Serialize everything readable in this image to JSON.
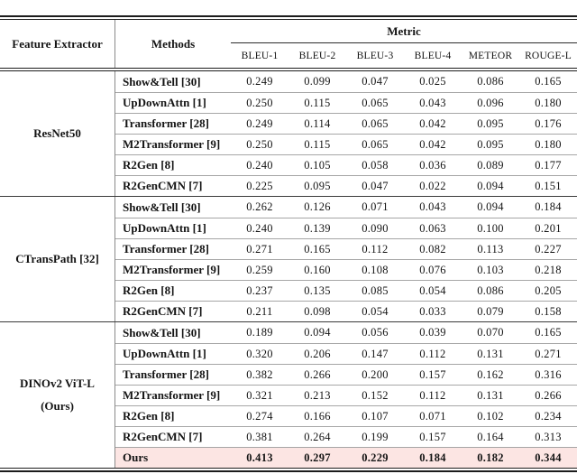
{
  "table": {
    "header": {
      "feature_extractor": "Feature Extractor",
      "methods": "Methods",
      "metric_group": "Metric",
      "metrics": [
        "BLEU-1",
        "BLEU-2",
        "BLEU-3",
        "BLEU-4",
        "METEOR",
        "ROUGE-L"
      ]
    },
    "groups": [
      {
        "extractor_lines": [
          "ResNet50"
        ],
        "rows": [
          {
            "method": "Show&Tell [30]",
            "values": [
              "0.249",
              "0.099",
              "0.047",
              "0.025",
              "0.086",
              "0.165"
            ]
          },
          {
            "method": "UpDownAttn [1]",
            "values": [
              "0.250",
              "0.115",
              "0.065",
              "0.043",
              "0.096",
              "0.180"
            ]
          },
          {
            "method": "Transformer [28]",
            "values": [
              "0.249",
              "0.114",
              "0.065",
              "0.042",
              "0.095",
              "0.176"
            ]
          },
          {
            "method": "M2Transformer [9]",
            "values": [
              "0.250",
              "0.115",
              "0.065",
              "0.042",
              "0.095",
              "0.180"
            ]
          },
          {
            "method": "R2Gen [8]",
            "values": [
              "0.240",
              "0.105",
              "0.058",
              "0.036",
              "0.089",
              "0.177"
            ]
          },
          {
            "method": "R2GenCMN [7]",
            "values": [
              "0.225",
              "0.095",
              "0.047",
              "0.022",
              "0.094",
              "0.151"
            ]
          }
        ]
      },
      {
        "extractor_lines": [
          "CTransPath [32]"
        ],
        "rows": [
          {
            "method": "Show&Tell [30]",
            "values": [
              "0.262",
              "0.126",
              "0.071",
              "0.043",
              "0.094",
              "0.184"
            ]
          },
          {
            "method": "UpDownAttn [1]",
            "values": [
              "0.240",
              "0.139",
              "0.090",
              "0.063",
              "0.100",
              "0.201"
            ]
          },
          {
            "method": "Transformer [28]",
            "values": [
              "0.271",
              "0.165",
              "0.112",
              "0.082",
              "0.113",
              "0.227"
            ]
          },
          {
            "method": "M2Transformer [9]",
            "values": [
              "0.259",
              "0.160",
              "0.108",
              "0.076",
              "0.103",
              "0.218"
            ]
          },
          {
            "method": "R2Gen [8]",
            "values": [
              "0.237",
              "0.135",
              "0.085",
              "0.054",
              "0.086",
              "0.205"
            ]
          },
          {
            "method": "R2GenCMN [7]",
            "values": [
              "0.211",
              "0.098",
              "0.054",
              "0.033",
              "0.079",
              "0.158"
            ]
          }
        ]
      },
      {
        "extractor_lines": [
          "DINOv2 ViT-L",
          "(Ours)"
        ],
        "rows": [
          {
            "method": "Show&Tell [30]",
            "values": [
              "0.189",
              "0.094",
              "0.056",
              "0.039",
              "0.070",
              "0.165"
            ]
          },
          {
            "method": "UpDownAttn [1]",
            "values": [
              "0.320",
              "0.206",
              "0.147",
              "0.112",
              "0.131",
              "0.271"
            ]
          },
          {
            "method": "Transformer [28]",
            "values": [
              "0.382",
              "0.266",
              "0.200",
              "0.157",
              "0.162",
              "0.316"
            ]
          },
          {
            "method": "M2Transformer [9]",
            "values": [
              "0.321",
              "0.213",
              "0.152",
              "0.112",
              "0.131",
              "0.266"
            ]
          },
          {
            "method": "R2Gen [8]",
            "values": [
              "0.274",
              "0.166",
              "0.107",
              "0.071",
              "0.102",
              "0.234"
            ]
          },
          {
            "method": "R2GenCMN [7]",
            "values": [
              "0.381",
              "0.264",
              "0.199",
              "0.157",
              "0.164",
              "0.313"
            ]
          },
          {
            "method": "Ours",
            "values": [
              "0.413",
              "0.297",
              "0.229",
              "0.184",
              "0.182",
              "0.344"
            ],
            "highlight": true
          }
        ]
      }
    ],
    "colors": {
      "highlight": "#fce5e3"
    }
  }
}
